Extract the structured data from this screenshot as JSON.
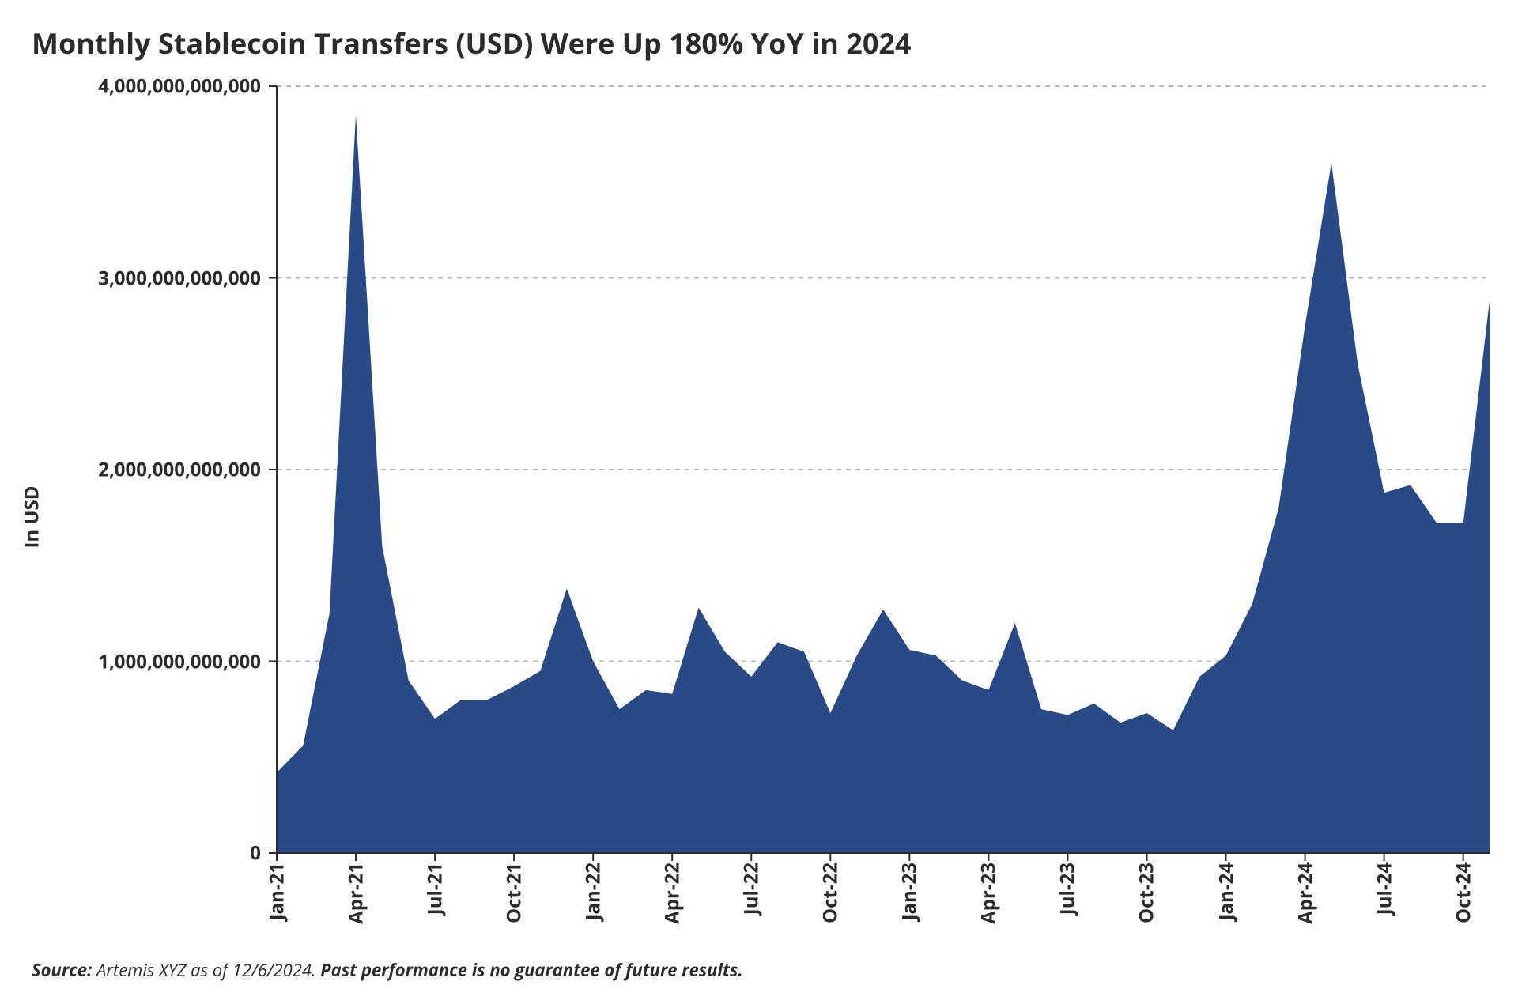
{
  "chart": {
    "type": "area",
    "title": "Monthly Stablecoin Transfers (USD) Were Up 180% YoY in 2024",
    "title_fontsize": 36,
    "title_color": "#2b2b2b",
    "ylabel": "In USD",
    "ylabel_fontsize": 24,
    "background_color": "#ffffff",
    "fill_color": "#284a86",
    "grid_color": "#b7b7b7",
    "grid_dash": "6,6",
    "axis_color": "#2b2b2b",
    "tick_mark_color": "#2b2b2b",
    "label_fontsize": 24,
    "label_color": "#2b2b2b",
    "x_categories": [
      "Jan-21",
      "Feb-21",
      "Mar-21",
      "Apr-21",
      "May-21",
      "Jun-21",
      "Jul-21",
      "Aug-21",
      "Sep-21",
      "Oct-21",
      "Nov-21",
      "Dec-21",
      "Jan-22",
      "Feb-22",
      "Mar-22",
      "Apr-22",
      "May-22",
      "Jun-22",
      "Jul-22",
      "Aug-22",
      "Sep-22",
      "Oct-22",
      "Nov-22",
      "Dec-22",
      "Jan-23",
      "Feb-23",
      "Mar-23",
      "Apr-23",
      "May-23",
      "Jun-23",
      "Jul-23",
      "Aug-23",
      "Sep-23",
      "Oct-23",
      "Nov-23",
      "Dec-23",
      "Jan-24",
      "Feb-24",
      "Mar-24",
      "Apr-24",
      "May-24",
      "Jun-24",
      "Jul-24",
      "Aug-24",
      "Sep-24",
      "Oct-24",
      "Nov-24"
    ],
    "x_tick_labels": [
      "Jan-21",
      "Apr-21",
      "Jul-21",
      "Oct-21",
      "Jan-22",
      "Apr-22",
      "Jul-22",
      "Oct-22",
      "Jan-23",
      "Apr-23",
      "Jul-23",
      "Oct-23",
      "Jan-24",
      "Apr-24",
      "Jul-24",
      "Oct-24"
    ],
    "x_tick_indices": [
      0,
      3,
      6,
      9,
      12,
      15,
      18,
      21,
      24,
      27,
      30,
      33,
      36,
      39,
      42,
      45
    ],
    "values": [
      420000000000,
      560000000000,
      1250000000000,
      3850000000000,
      1600000000000,
      900000000000,
      700000000000,
      800000000000,
      800000000000,
      870000000000,
      950000000000,
      1380000000000,
      1000000000000,
      750000000000,
      850000000000,
      830000000000,
      1280000000000,
      1050000000000,
      920000000000,
      1100000000000,
      1050000000000,
      730000000000,
      1030000000000,
      1270000000000,
      1060000000000,
      1030000000000,
      900000000000,
      850000000000,
      1200000000000,
      750000000000,
      720000000000,
      780000000000,
      680000000000,
      730000000000,
      640000000000,
      920000000000,
      1030000000000,
      1300000000000,
      1800000000000,
      2750000000000,
      3600000000000,
      2550000000000,
      1880000000000,
      1920000000000,
      1720000000000,
      1720000000000,
      2880000000000
    ],
    "ylim": [
      0,
      4000000000000
    ],
    "ytick_step": 1000000000000,
    "y_tick_labels": [
      "0",
      "1,000,000,000,000",
      "2,000,000,000,000",
      "3,000,000,000,000",
      "4,000,000,000,000"
    ]
  },
  "source": {
    "label": "Source:",
    "text": " Artemis XYZ as of 12/6/2024. ",
    "warn": "Past performance is no guarantee of future results."
  }
}
